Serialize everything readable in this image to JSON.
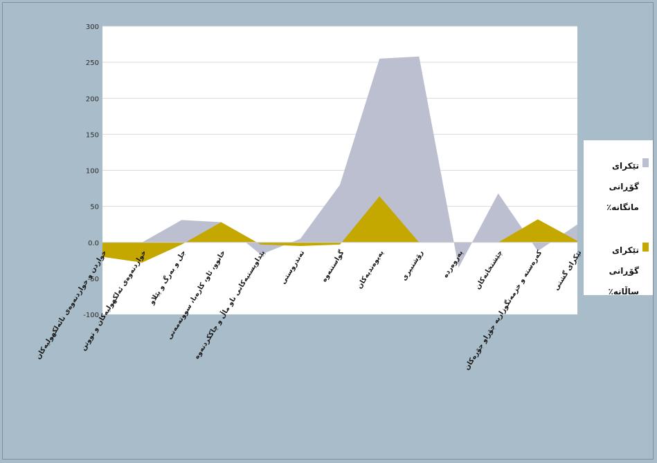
{
  "chart_data": {
    "type": "area",
    "categories": [
      "خواردن و خواردنەوەی نائەلکهولیەکان",
      "خواردنەوەی ئەلکهولیەکان و تووتن",
      "جل و بەرگ و پێلاو",
      "خانوو، ئاو، کارەبا، سووتەمەنی",
      "پێداویستیەکانی ناو ماڵ و چاککردنەوە",
      "تەندروستی",
      "گواستنەوە",
      "پەیوەندیەکان",
      "رۆشنبیری",
      "پەروەردە",
      "چێشتخانەکان",
      "کەرەستە و خزمەتگوزاریە جۆراو جۆرەکان",
      "تێکرای گشتی"
    ],
    "series": [
      {
        "name": "تێکرای گۆڕانی مانگانە٪",
        "color": "#bcbfcf",
        "values": [
          -10,
          0,
          31,
          28,
          -17,
          5,
          80,
          255,
          258,
          -35,
          68,
          -12,
          25
        ]
      },
      {
        "name": "تێکرای گۆڕانی ساڵانە٪",
        "color": "#c4a800",
        "values": [
          -20,
          -28,
          -3,
          28,
          -3,
          -5,
          -3,
          64,
          0,
          0,
          0,
          32,
          2
        ]
      }
    ],
    "y_ticks": [
      "-100",
      "-50",
      "0.0",
      "50",
      "100",
      "150",
      "200",
      "250",
      "300"
    ],
    "ylim": [
      -100,
      300
    ],
    "grid": true,
    "legend_position": "right"
  }
}
